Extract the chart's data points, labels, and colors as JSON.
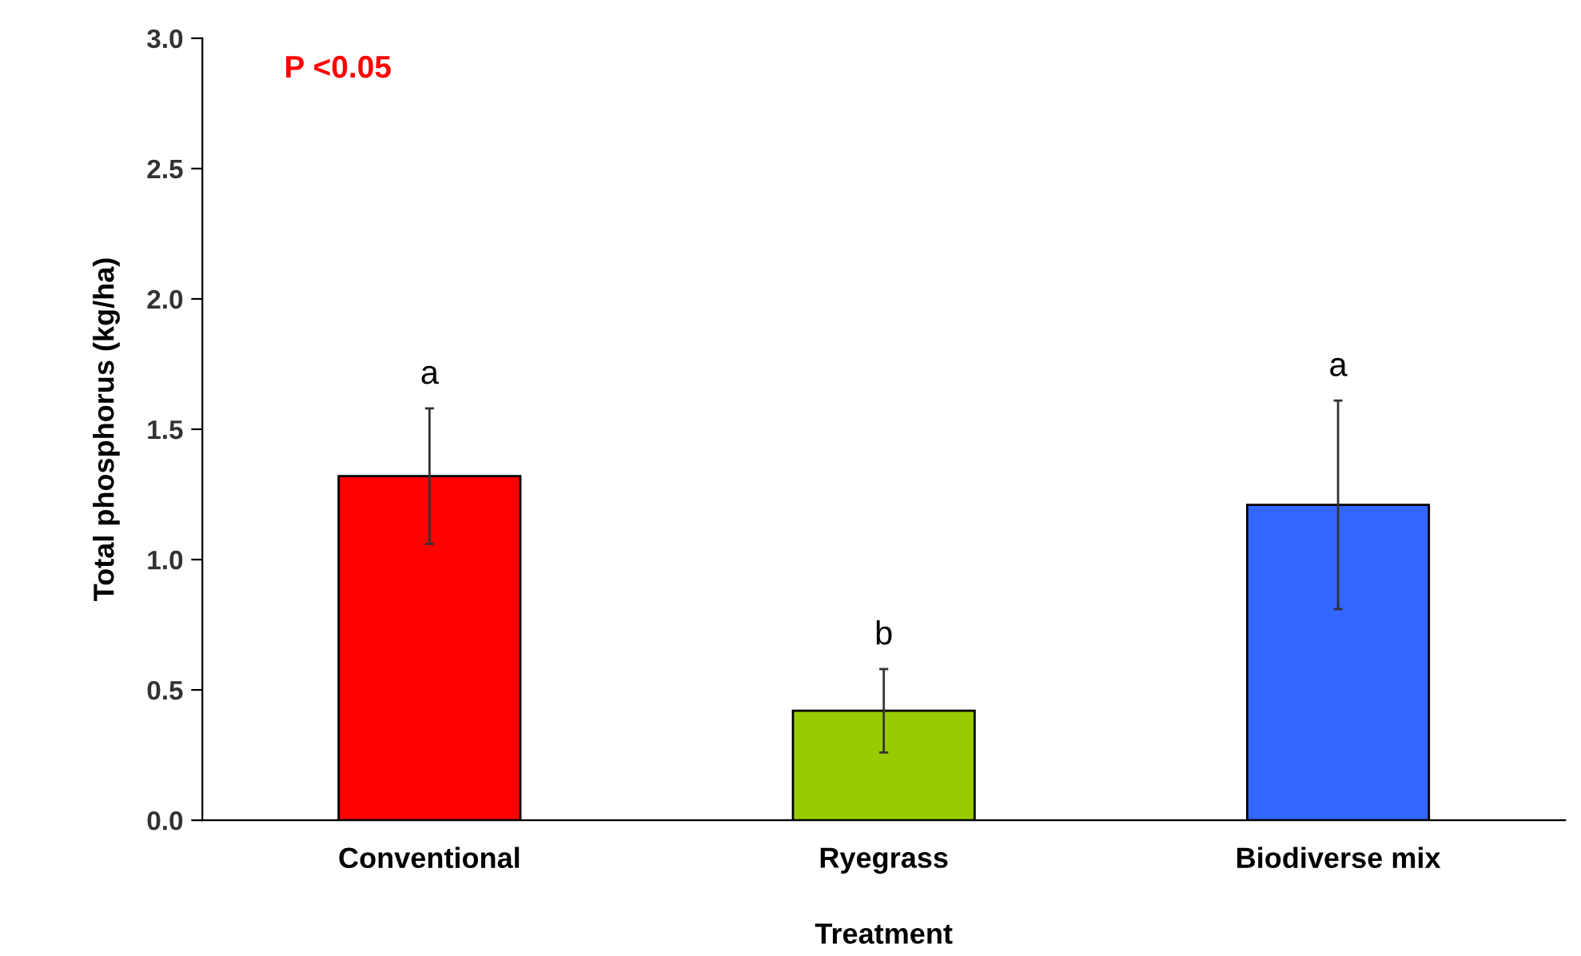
{
  "chart_data": {
    "type": "bar",
    "xlabel": "Treatment",
    "ylabel": "Total phosphorus (kg/ha)",
    "categories": [
      "Conventional",
      "Ryegrass",
      "Biodiverse mix"
    ],
    "values": [
      1.32,
      0.42,
      1.21
    ],
    "errors": [
      0.26,
      0.16,
      0.4
    ],
    "colors": [
      "#ff0000",
      "#99cc00",
      "#3366ff"
    ],
    "ylim": [
      0,
      3.0
    ],
    "yticks": [
      {
        "value": 0,
        "label": "0.0"
      },
      {
        "value": 0.5,
        "label": "0.5"
      },
      {
        "value": 1.0,
        "label": "1.0"
      },
      {
        "value": 1.5,
        "label": "1.5"
      },
      {
        "value": 2.0,
        "label": "2.0"
      },
      {
        "value": 2.5,
        "label": "2.5"
      },
      {
        "value": 3.0,
        "label": "3.0"
      }
    ],
    "grid": false,
    "legend": false,
    "annotations": [
      "P <0.05",
      {
        "text": "a",
        "x": "Conventional",
        "y": 1.58
      },
      {
        "text": "b",
        "x": "Ryegrass",
        "y": 0.58
      },
      {
        "text": "a",
        "x": "Biodiverse mix",
        "y": 1.61
      }
    ]
  }
}
